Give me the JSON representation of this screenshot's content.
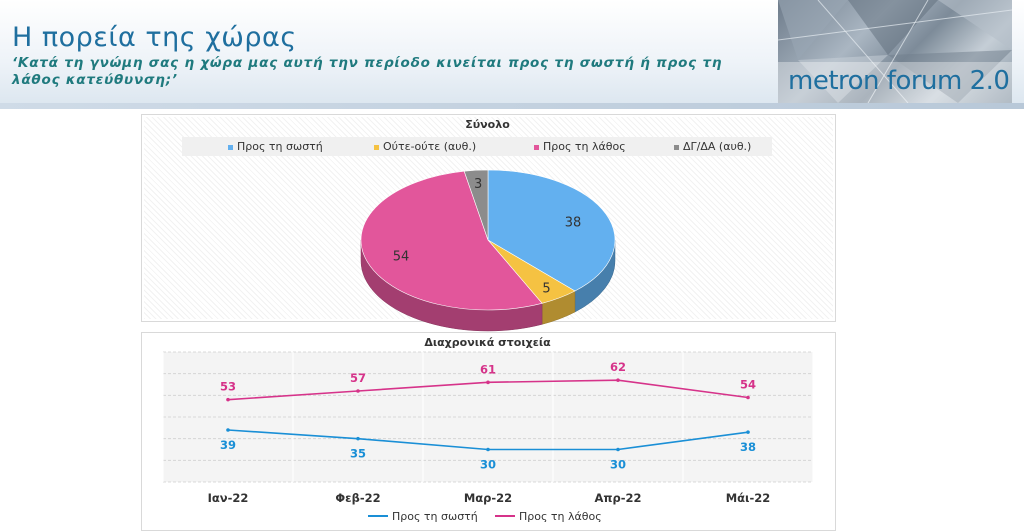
{
  "header": {
    "title": "Η πορεία της χώρας",
    "subtitle": "‘Κατά τη γνώμη σας η χώρα μας αυτή την περίοδο κινείται προς τη σωστή ή προς τη λάθος κατεύθυνση;’",
    "logo_text": "metron forum 2.0"
  },
  "colors": {
    "right": "#63b0ef",
    "neither": "#f5c242",
    "wrong": "#e2569b",
    "dkna": "#8c8c8c",
    "right_line": "#1a8fd6",
    "wrong_line": "#d6338a"
  },
  "chart_data": [
    {
      "type": "pie",
      "title": "Σύνολο",
      "legend_position": "top",
      "categories": [
        "Προς τη σωστή",
        "Ούτε-ούτε (αυθ.)",
        "Προς τη λάθος",
        "ΔΓ/ΔΑ (αυθ.)"
      ],
      "values": [
        38,
        5,
        54,
        3
      ]
    },
    {
      "type": "line",
      "title": "Διαχρονικά στοιχεία",
      "legend_position": "bottom",
      "categories": [
        "Ιαν-22",
        "Φεβ-22",
        "Μαρ-22",
        "Απρ-22",
        "Μάι-22"
      ],
      "series": [
        {
          "name": "Προς τη σωστή",
          "values": [
            39,
            35,
            30,
            30,
            38
          ]
        },
        {
          "name": "Προς τη λάθος",
          "values": [
            53,
            57,
            61,
            62,
            54
          ]
        }
      ],
      "ylim": [
        15,
        75
      ],
      "grid": true
    }
  ]
}
